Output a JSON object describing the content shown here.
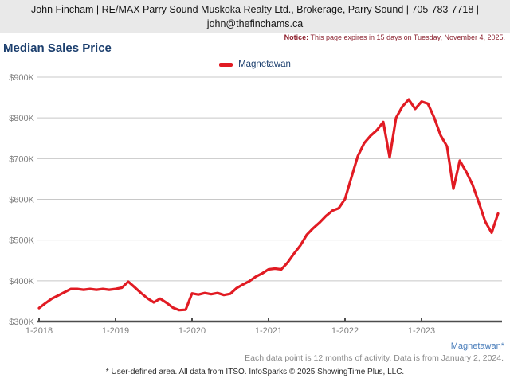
{
  "header": {
    "line1": "John Fincham | RE/MAX Parry Sound Muskoka Realty Ltd., Brokerage, Parry Sound | 705-783-7718 |",
    "line2": "john@thefinchams.ca"
  },
  "notice": {
    "label": "Notice:",
    "text": " This page expires in 15 days on Tuesday, November 4, 2025."
  },
  "title": "Median Sales Price",
  "legend": {
    "label": "Magnetawan"
  },
  "footer": {
    "series_label": "Magnetawan*",
    "data_note": "Each data point is 12 months of activity. Data is from January 2, 2024.",
    "attribution": "* User-defined area. All data from ITSO. InfoSparks © 2025 ShowingTime Plus, LLC."
  },
  "colors": {
    "line": "#e11b23",
    "grid": "#c8c8c8",
    "axis": "#4d4d4d",
    "tick_label": "#7f7f7f",
    "title_navy": "#1c3f6e",
    "notice_red": "#8e2734",
    "series_link_blue": "#4a7ebb"
  },
  "chart_data": {
    "type": "line",
    "title": "Median Sales Price",
    "series_name": "Magnetawan",
    "x_start": "2018-01",
    "x_end": "2024-01",
    "x_interval": "monthly",
    "x_tick_labels": [
      "1-2018",
      "1-2019",
      "1-2020",
      "1-2021",
      "1-2022",
      "1-2023"
    ],
    "y_tick_labels": [
      "$300K",
      "$400K",
      "$500K",
      "$600K",
      "$700K",
      "$800K",
      "$900K"
    ],
    "y_ticks_k": [
      300,
      400,
      500,
      600,
      700,
      800,
      900
    ],
    "ylim_k": [
      300,
      900
    ],
    "grid": "horizontal",
    "legend_position": "top-center",
    "values_unit": "CAD thousands",
    "values_k": [
      333,
      345,
      356,
      364,
      372,
      380,
      380,
      378,
      380,
      378,
      380,
      378,
      380,
      383,
      398,
      384,
      370,
      357,
      347,
      356,
      346,
      334,
      328,
      329,
      369,
      366,
      370,
      367,
      370,
      365,
      368,
      382,
      391,
      399,
      410,
      418,
      428,
      430,
      428,
      445,
      467,
      487,
      513,
      529,
      543,
      559,
      572,
      578,
      601,
      654,
      706,
      738,
      756,
      770,
      790,
      703,
      800,
      828,
      845,
      822,
      840,
      835,
      800,
      757,
      730,
      626,
      695,
      668,
      636,
      592,
      545,
      518,
      565
    ]
  }
}
